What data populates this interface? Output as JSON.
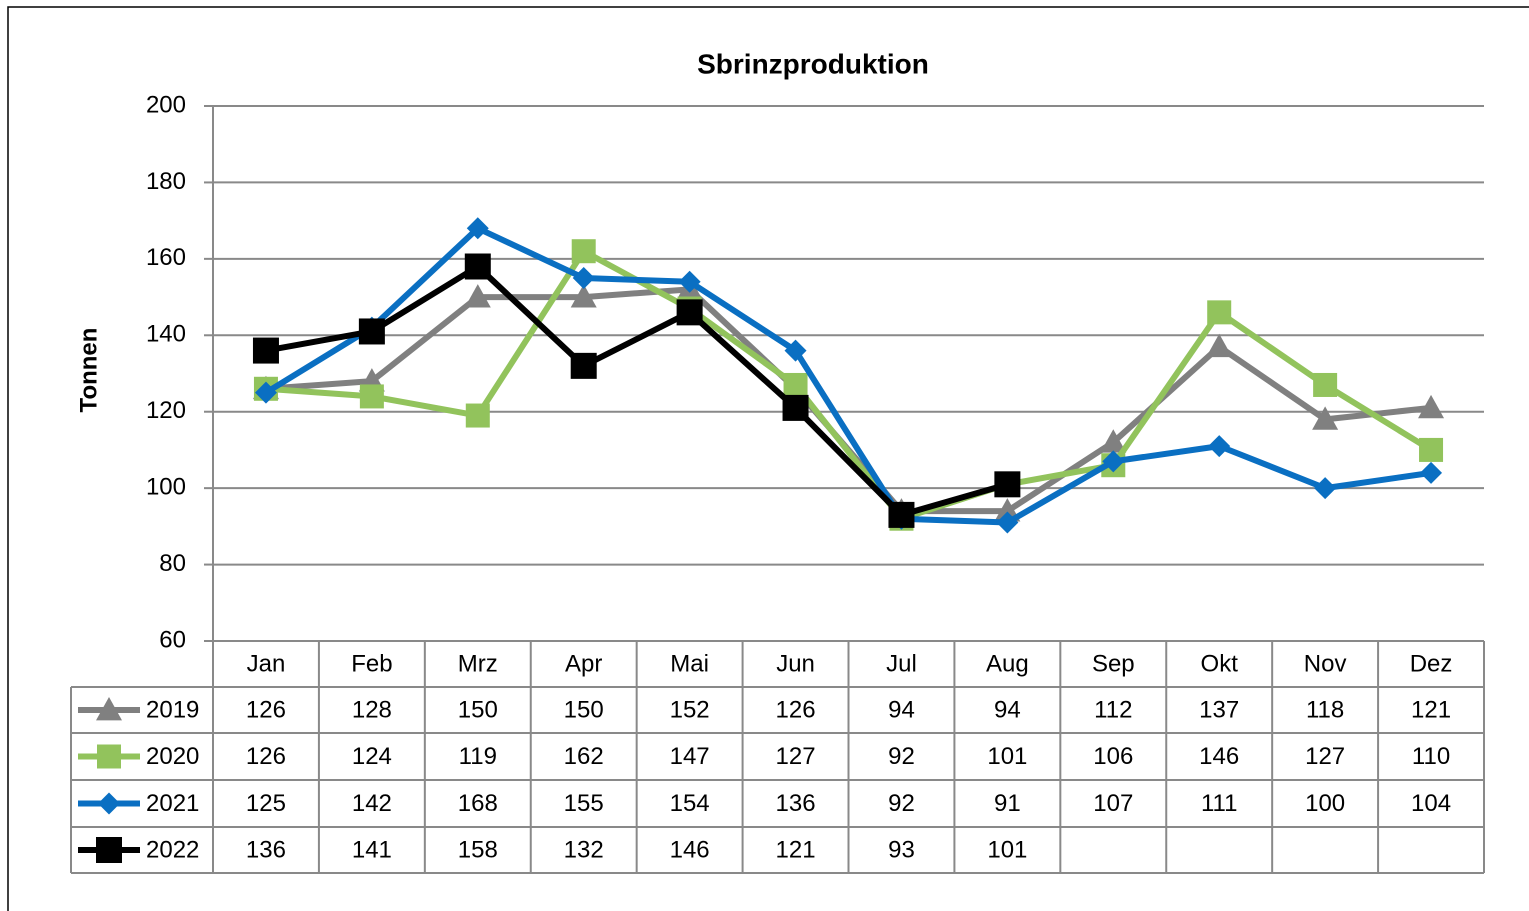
{
  "chart_data": {
    "type": "line",
    "title": "Sbrinzproduktion",
    "y_label": "Tonnen",
    "categories": [
      "Jan",
      "Feb",
      "Mrz",
      "Apr",
      "Mai",
      "Jun",
      "Jul",
      "Aug",
      "Sep",
      "Okt",
      "Nov",
      "Dez"
    ],
    "series": [
      {
        "name": "2019",
        "color": "#808080",
        "marker": "triangle",
        "values": [
          126,
          128,
          150,
          150,
          152,
          126,
          94,
          94,
          112,
          137,
          118,
          121
        ]
      },
      {
        "name": "2020",
        "color": "#92c35c",
        "marker": "square",
        "values": [
          126,
          124,
          119,
          162,
          147,
          127,
          92,
          101,
          106,
          146,
          127,
          110
        ]
      },
      {
        "name": "2021",
        "color": "#0a6fc2",
        "marker": "diamond",
        "values": [
          125,
          142,
          168,
          155,
          154,
          136,
          92,
          91,
          107,
          111,
          100,
          104
        ]
      },
      {
        "name": "2022",
        "color": "#000000",
        "marker": "square",
        "values": [
          136,
          141,
          158,
          132,
          146,
          121,
          93,
          101,
          null,
          null,
          null,
          null
        ]
      }
    ],
    "ylim": [
      60,
      200
    ],
    "yticks": [
      60,
      80,
      100,
      120,
      140,
      160,
      180,
      200
    ],
    "grid": true,
    "data_table": true
  }
}
